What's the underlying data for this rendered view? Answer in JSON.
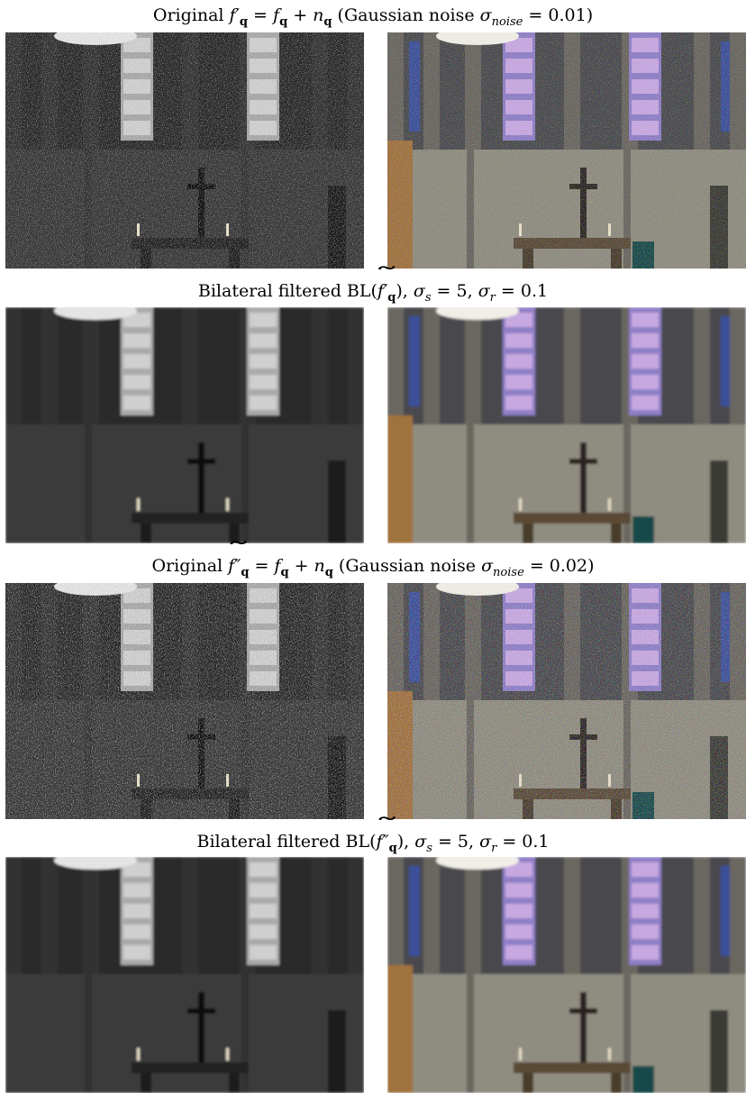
{
  "figure": {
    "rows": [
      {
        "caption": {
          "prefix": "Original ",
          "sym": "f",
          "prime": "′",
          "sub": "q",
          "mid": " = ",
          "sym2": "f",
          "sub2": "q",
          "plus": " + ",
          "sym3": "n",
          "sub3": "q",
          "suffix_text": " (Gaussian noise ",
          "sigma": "σ",
          "sigma_sub": "noise",
          "value": " = 0.01)"
        },
        "noise": 0.01,
        "filtered": false
      },
      {
        "caption": {
          "prefix": "Bilateral filtered BL(",
          "sym": "f",
          "prime": "′",
          "sub": "q",
          "close": "),",
          "sigma_s": "σ",
          "sub_s": "s",
          "val_s": " = 5, ",
          "sigma_r": "σ",
          "sub_r": "r",
          "val_r": " = 0.1"
        },
        "noise": 0.01,
        "filtered": true
      },
      {
        "caption": {
          "prefix": "Original ",
          "sym": "f",
          "prime": "″",
          "sub": "q",
          "mid": " = ",
          "sym2": "f",
          "sub2": "q",
          "plus": " + ",
          "sym3": "n",
          "sub3": "q",
          "suffix_text": " (Gaussian noise ",
          "sigma": "σ",
          "sigma_sub": "noise",
          "value": " = 0.02)"
        },
        "noise": 0.02,
        "filtered": false
      },
      {
        "caption": {
          "prefix": "Bilateral filtered BL(",
          "sym": "f",
          "prime": "″",
          "sub": "q",
          "close": "),",
          "sigma_s": "σ",
          "sub_s": "s",
          "val_s": " = 5, ",
          "sigma_r": "σ",
          "sub_r": "r",
          "val_r": " = 0.1"
        },
        "noise": 0.02,
        "filtered": true
      }
    ],
    "panels": [
      "grayscale",
      "color"
    ]
  }
}
